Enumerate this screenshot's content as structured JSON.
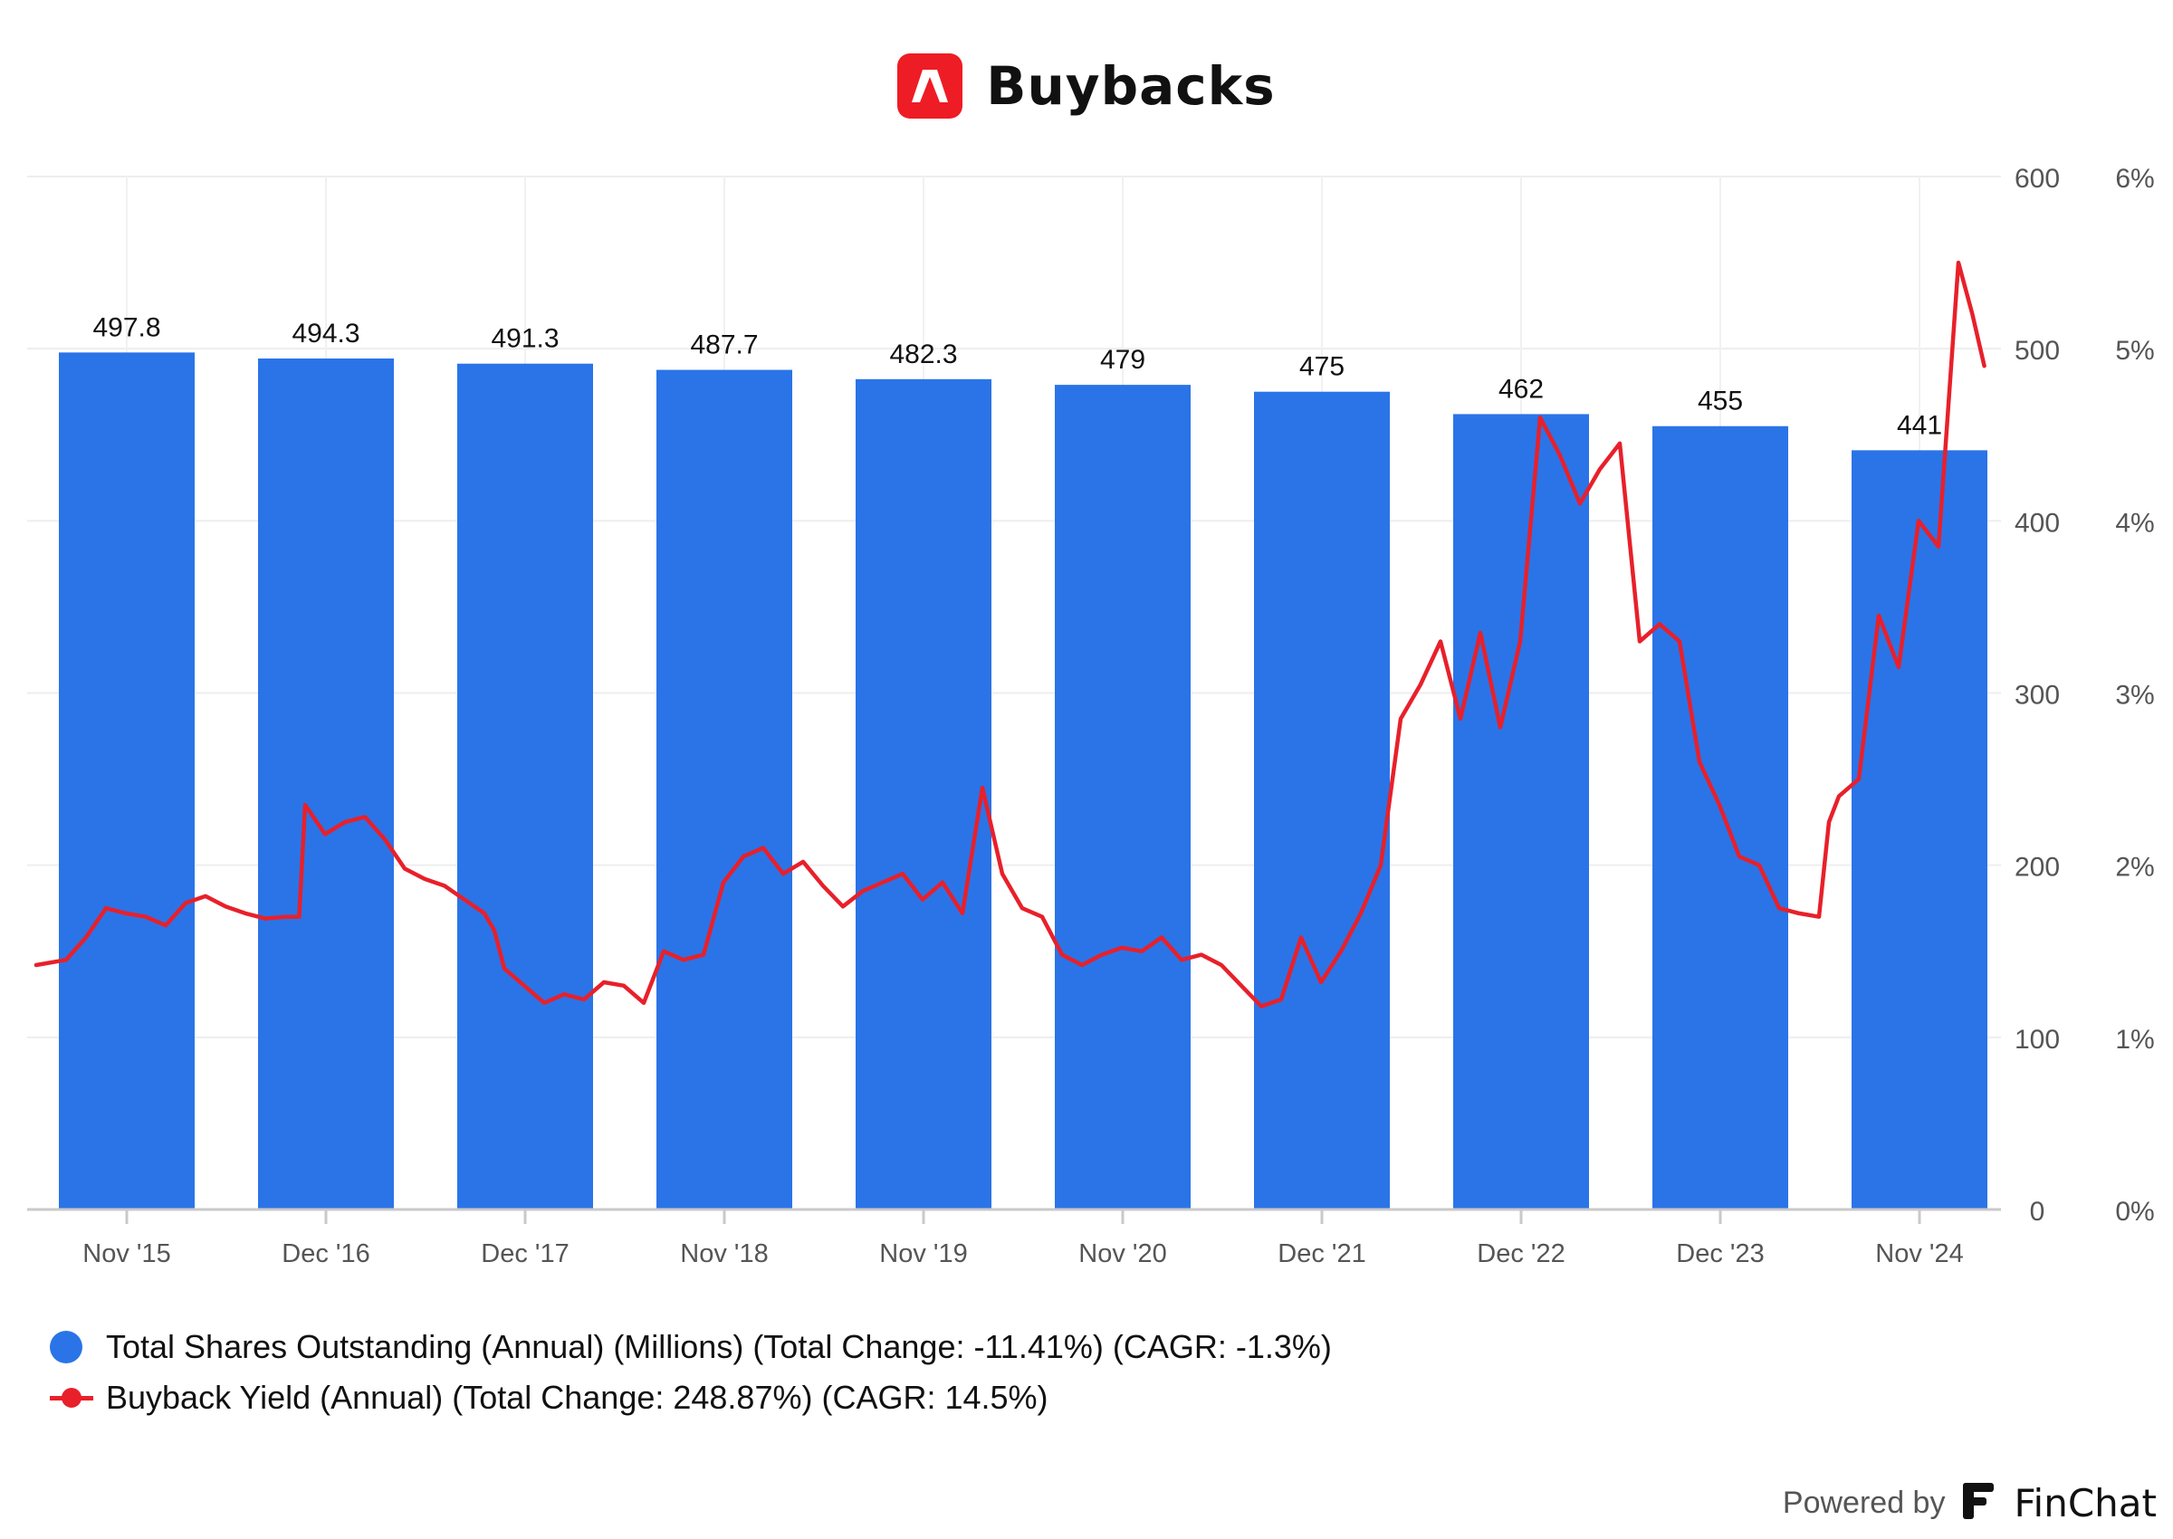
{
  "header": {
    "title": "Buybacks",
    "logo_icon": "adobe-logo-icon",
    "logo_color": "#ee1c25"
  },
  "chart_data": {
    "type": "bar+line",
    "categories": [
      "Nov '15",
      "Dec '16",
      "Dec '17",
      "Nov '18",
      "Nov '19",
      "Nov '20",
      "Dec '21",
      "Dec '22",
      "Dec '23",
      "Nov '24"
    ],
    "left_axis": {
      "ticks": [
        "0",
        "100",
        "200",
        "300",
        "400",
        "500",
        "600"
      ],
      "range": [
        0,
        600
      ]
    },
    "right_axis": {
      "ticks": [
        "0%",
        "1%",
        "2%",
        "3%",
        "4%",
        "5%",
        "6%"
      ],
      "range": [
        0,
        6
      ]
    },
    "grid": true,
    "legend_position": "bottom-left",
    "series": [
      {
        "name": "Total Shares Outstanding (Annual) (Millions) (Total Change: -11.41%) (CAGR: -1.3%)",
        "type": "bar",
        "axis": "left",
        "color": "#2a74e8",
        "values": [
          497.8,
          494.3,
          491.3,
          487.7,
          482.3,
          479,
          475,
          462,
          455,
          441
        ],
        "labels": [
          "497.8",
          "494.3",
          "491.3",
          "487.7",
          "482.3",
          "479",
          "475",
          "462",
          "455",
          "441"
        ]
      },
      {
        "name": "Buyback Yield (Annual) (Total Change: 248.87%) (CAGR: 14.5%)",
        "type": "line",
        "axis": "right",
        "color": "#e8202a",
        "x": [
          0.0,
          0.15,
          0.25,
          0.35,
          0.45,
          0.55,
          0.65,
          0.75,
          0.85,
          0.95,
          1.05,
          1.15,
          1.25,
          1.32,
          1.35,
          1.45,
          1.55,
          1.65,
          1.75,
          1.85,
          1.95,
          2.05,
          2.15,
          2.25,
          2.3,
          2.35,
          2.45,
          2.55,
          2.65,
          2.75,
          2.85,
          2.95,
          3.05,
          3.15,
          3.25,
          3.35,
          3.45,
          3.55,
          3.65,
          3.75,
          3.85,
          3.95,
          4.05,
          4.15,
          4.25,
          4.35,
          4.45,
          4.55,
          4.65,
          4.75,
          4.85,
          4.95,
          5.05,
          5.15,
          5.25,
          5.35,
          5.45,
          5.55,
          5.65,
          5.75,
          5.85,
          5.95,
          6.05,
          6.15,
          6.25,
          6.35,
          6.45,
          6.55,
          6.65,
          6.75,
          6.85,
          6.95,
          7.05,
          7.15,
          7.25,
          7.35,
          7.45,
          7.55,
          7.65,
          7.75,
          7.85,
          7.95,
          8.05,
          8.15,
          8.25,
          8.35,
          8.45,
          8.55,
          8.65,
          8.75,
          8.85,
          8.95,
          9.0,
          9.05,
          9.15,
          9.25,
          9.35,
          9.45,
          9.55,
          9.65,
          9.72,
          9.78
        ],
        "values": [
          1.42,
          1.45,
          1.58,
          1.75,
          1.72,
          1.7,
          1.65,
          1.78,
          1.82,
          1.76,
          1.72,
          1.69,
          1.7,
          1.7,
          2.35,
          2.18,
          2.25,
          2.28,
          2.15,
          1.98,
          1.92,
          1.88,
          1.8,
          1.72,
          1.62,
          1.4,
          1.3,
          1.2,
          1.25,
          1.22,
          1.32,
          1.3,
          1.2,
          1.5,
          1.45,
          1.48,
          1.9,
          2.05,
          2.1,
          1.95,
          2.02,
          1.88,
          1.76,
          1.85,
          1.9,
          1.95,
          1.8,
          1.9,
          1.72,
          2.45,
          1.95,
          1.75,
          1.7,
          1.48,
          1.42,
          1.48,
          1.52,
          1.5,
          1.58,
          1.45,
          1.48,
          1.42,
          1.3,
          1.18,
          1.22,
          1.58,
          1.32,
          1.5,
          1.72,
          2.0,
          2.85,
          3.05,
          3.3,
          2.85,
          3.35,
          2.8,
          3.3,
          4.6,
          4.38,
          4.1,
          4.3,
          4.45,
          3.3,
          3.4,
          3.3,
          2.6,
          2.35,
          2.05,
          2.0,
          1.75,
          1.72,
          1.7,
          2.25,
          2.4,
          2.5,
          3.45,
          3.15,
          4.0,
          3.85,
          5.5,
          5.2,
          4.9
        ]
      }
    ]
  },
  "legend": {
    "bars_label": "Total Shares Outstanding (Annual) (Millions) (Total Change: -11.41%) (CAGR: -1.3%)",
    "line_label": "Buyback Yield (Annual) (Total Change: 248.87%) (CAGR: 14.5%)"
  },
  "footer": {
    "powered_by": "Powered by",
    "brand": "FinChat",
    "brand_icon": "finchat-logo-icon"
  }
}
